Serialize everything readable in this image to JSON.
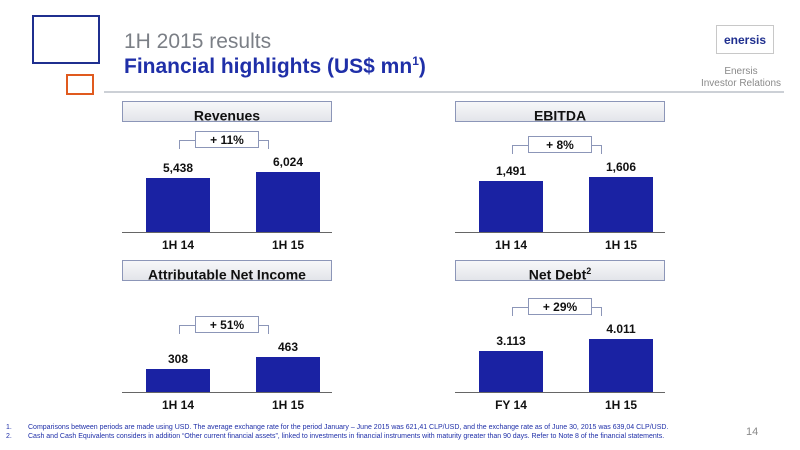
{
  "header": {
    "subtitle": "1H 2015 results",
    "title": "Financial highlights (US$ mn",
    "title_sup": "1",
    "title_close": ")"
  },
  "brand": {
    "logo_text": "enersis",
    "ir_line1": "Enersis",
    "ir_line2": "Investor Relations"
  },
  "colors": {
    "bar": "#1a22a3",
    "title_blue": "#1f2fa8",
    "deco_blue": "#1f2f8f",
    "deco_orange": "#e05a1e"
  },
  "chart_data": [
    {
      "type": "bar",
      "title": "Revenues",
      "title_sup": "",
      "growth": "+ 11%",
      "categories": [
        "1H 14",
        "1H 15"
      ],
      "values": [
        5438,
        6024
      ],
      "value_labels": [
        "5,438",
        "6,024"
      ]
    },
    {
      "type": "bar",
      "title": "EBITDA",
      "title_sup": "",
      "growth": "+ 8%",
      "categories": [
        "1H 14",
        "1H 15"
      ],
      "values": [
        1491,
        1606
      ],
      "value_labels": [
        "1,491",
        "1,606"
      ]
    },
    {
      "type": "bar",
      "title": "Attributable Net Income",
      "title_sup": "",
      "growth": "+ 51%",
      "categories": [
        "1H 14",
        "1H 15"
      ],
      "values": [
        308,
        463
      ],
      "value_labels": [
        "308",
        "463"
      ]
    },
    {
      "type": "bar",
      "title": "Net Debt",
      "title_sup": "2",
      "growth": "+ 29%",
      "categories": [
        "FY 14",
        "1H 15"
      ],
      "values": [
        3113,
        4011
      ],
      "value_labels": [
        "3.113",
        "4.011"
      ]
    }
  ],
  "footnotes": [
    {
      "num": "1.",
      "text": "Comparisons between periods are made using USD. The average exchange rate for the period January – June 2015 was 621,41 CLP/USD, and the exchange rate as of June 30, 2015 was 639,04 CLP/USD."
    },
    {
      "num": "2.",
      "text": "Cash and Cash Equivalents considers in addition “Other current financial assets”, linked to investments in financial instruments with maturity greater than 90 days. Refer to Note 8 of the financial statements."
    }
  ],
  "page_number": "14"
}
